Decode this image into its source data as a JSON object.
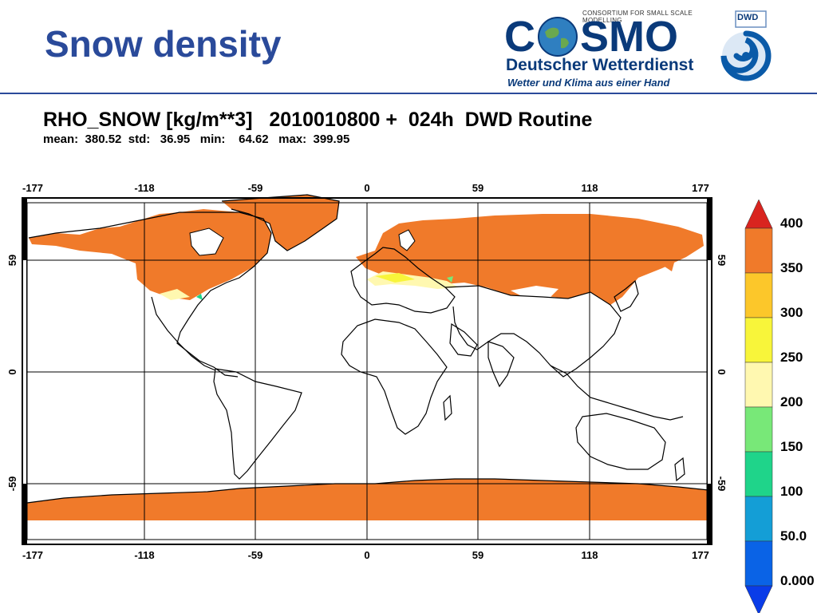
{
  "slide": {
    "title": "Snow density"
  },
  "logo": {
    "consortium": "CONSORTIUM FOR SMALL SCALE MODELLING",
    "wordmark_left": "C",
    "wordmark_right": "SMO",
    "agency": "Deutscher Wetterdienst",
    "slogan": "Wetter und Klima aus einer Hand",
    "emblem_text": "DWD"
  },
  "map": {
    "header": "RHO_SNOW [kg/m**3]   2010010800 +  024h  DWD Routine",
    "stats": "mean:  380.52  std:   36.95   min:    64.62   max:  399.95",
    "lon_ticks": [
      "-177",
      "-118",
      "-59",
      "0",
      "59",
      "118",
      "177"
    ],
    "lat_ticks": [
      "59",
      "0",
      "-59"
    ]
  },
  "colorbar": {
    "labels": [
      "400",
      "350",
      "300",
      "250",
      "200",
      "150",
      "100",
      "50.0",
      "0.000"
    ],
    "colors": [
      "#d9241f",
      "#f07a2a",
      "#fcc72a",
      "#f8f53a",
      "#fff8b0",
      "#78e878",
      "#1fd48a",
      "#149ed6",
      "#0a63e6",
      "#0a3ce8"
    ]
  },
  "colors": {
    "title": "#2a4a9a",
    "snow": "#f07a2a",
    "frame": "#000000"
  }
}
